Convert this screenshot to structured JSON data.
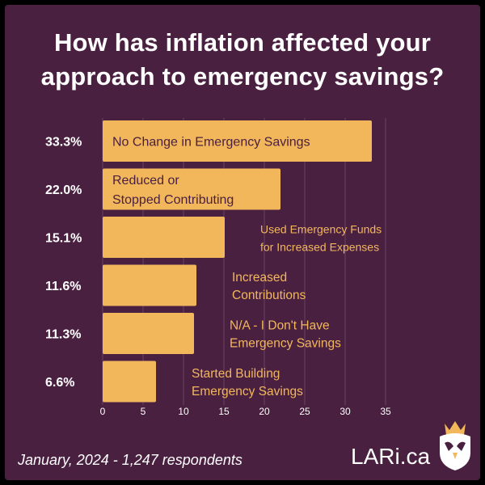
{
  "title_line1": "How has inflation affected your",
  "title_line2": "approach to emergency savings?",
  "footer": "January, 2024 - 1,247 respondents",
  "brand": "LARi.ca",
  "colors": {
    "background": "#4a2040",
    "bar": "#f2b75b",
    "text": "#ffffff",
    "grid": "#6b4562",
    "bar_label_inside": "#4a2040",
    "bar_label_outside": "#f2b75b"
  },
  "chart_data": {
    "type": "bar",
    "orientation": "horizontal",
    "title": "How has inflation affected your approach to emergency savings?",
    "categories": [
      "No Change in Emergency Savings",
      "Reduced or Stopped Contributing",
      "Used Emergency Funds for Increased Expenses",
      "Increased Contributions",
      "N/A - I Don't Have Emergency Savings",
      "Started Building Emergency Savings"
    ],
    "category_lines": [
      [
        "No Change in Emergency Savings"
      ],
      [
        "Reduced or",
        "Stopped Contributing"
      ],
      [
        "Used Emergency Funds",
        "for Increased Expenses"
      ],
      [
        "Increased",
        "Contributions"
      ],
      [
        "N/A - I Don't Have",
        "Emergency Savings"
      ],
      [
        "Started Building",
        "Emergency Savings"
      ]
    ],
    "values": [
      33.3,
      22.0,
      15.1,
      11.6,
      11.3,
      6.6
    ],
    "value_labels": [
      "33.3%",
      "22.0%",
      "15.1%",
      "11.6%",
      "11.3%",
      "6.6%"
    ],
    "xlim": [
      0,
      35
    ],
    "xticks": [
      0,
      5,
      10,
      15,
      20,
      25,
      30,
      35
    ],
    "grid": "vertical"
  }
}
